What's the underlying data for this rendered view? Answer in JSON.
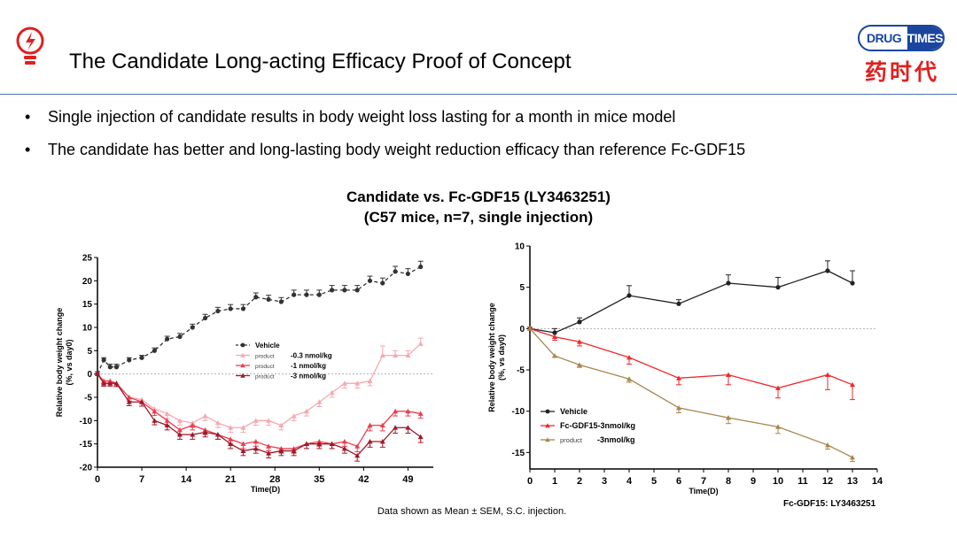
{
  "header": {
    "title": "The Candidate Long-acting Efficacy Proof of Concept",
    "logo_en_left": "DRUG",
    "logo_en_right": "TIMES",
    "logo_cn": "药时代",
    "colors": {
      "accent": "#e02020",
      "brand": "#1a46a0",
      "rule": "#4a6fb5"
    }
  },
  "bullets": [
    "Single injection of candidate results in body weight loss lasting for a month in mice model",
    "The candidate has better and long-lasting body weight reduction efficacy than reference Fc-GDF15"
  ],
  "bullet_symbol": "•",
  "chart_title_line1": "Candidate vs. Fc-GDF15 (LY3463251)",
  "chart_title_line2": "(C57 mice, n=7, single injection)",
  "footnote": "Data shown as Mean ± SEM, S.C. injection.",
  "ref_note": "Fc-GDF15: LY3463251",
  "chart_data": [
    {
      "type": "line",
      "xlabel": "Time(D)",
      "ylabel_line1": "Relative body weight change",
      "ylabel_line2": "(%, vs day0)",
      "xlim": [
        0,
        53
      ],
      "ylim": [
        -20,
        25
      ],
      "xticks": [
        0,
        7,
        14,
        21,
        28,
        35,
        42,
        49
      ],
      "yticks": [
        -20,
        -15,
        -10,
        -5,
        0,
        5,
        10,
        15,
        20,
        25
      ],
      "x": [
        0,
        1,
        2,
        3,
        5,
        7,
        9,
        11,
        13,
        15,
        17,
        19,
        21,
        23,
        25,
        27,
        29,
        31,
        33,
        35,
        37,
        39,
        41,
        43,
        45,
        47,
        49,
        51
      ],
      "series": [
        {
          "name": "Vehicle",
          "prefix": "",
          "color": "#333333",
          "marker": "circle",
          "dashed": true,
          "values": [
            0,
            3,
            1.5,
            1.5,
            3,
            3.5,
            5,
            7.5,
            8,
            10,
            12,
            13.5,
            14,
            14,
            16.5,
            16,
            15.5,
            17,
            17,
            17,
            18,
            18,
            18,
            20,
            19.5,
            22,
            21.5,
            23
          ],
          "err": [
            0.5,
            0.5,
            0.6,
            0.6,
            0.5,
            0.5,
            0.6,
            0.6,
            0.7,
            0.7,
            0.8,
            0.8,
            0.9,
            0.9,
            0.9,
            0.9,
            0.9,
            1,
            1,
            1,
            1,
            1,
            1,
            1,
            1.1,
            1.1,
            1.1,
            1.2
          ]
        },
        {
          "name": "-0.3 nmol/kg",
          "prefix": "product",
          "color": "#f7a8b0",
          "marker": "triangle",
          "dashed": false,
          "values": [
            0,
            -1.5,
            -1.5,
            -2,
            -5,
            -5.5,
            -7.5,
            -8.5,
            -10,
            -10.5,
            -9,
            -10.5,
            -11.5,
            -11.5,
            -10,
            -10,
            -11,
            -9,
            -8,
            -6,
            -4,
            -2,
            -2,
            -1.5,
            4,
            4,
            4,
            6.5
          ],
          "err": [
            0.5,
            0.6,
            0.6,
            0.7,
            0.8,
            0.9,
            0.9,
            1,
            1,
            1,
            1,
            1,
            1,
            1,
            1,
            1,
            1,
            1,
            1,
            1,
            1,
            1,
            1,
            1,
            2,
            1,
            1,
            1.2
          ]
        },
        {
          "name": "-1 nmol/kg",
          "prefix": "product",
          "color": "#e84050",
          "marker": "triangle",
          "dashed": false,
          "values": [
            0,
            -1.5,
            -1.5,
            -2,
            -5,
            -6,
            -8,
            -10,
            -12,
            -11,
            -12,
            -13,
            -14,
            -15,
            -14.5,
            -15.5,
            -16,
            -16,
            -15,
            -14.5,
            -15,
            -14.5,
            -15.5,
            -11,
            -11,
            -8,
            -8,
            -8.5
          ],
          "err": [
            0.5,
            0.6,
            0.6,
            0.7,
            0.8,
            0.9,
            0.9,
            1,
            1,
            1,
            1,
            1,
            1,
            1,
            1,
            1,
            1,
            1,
            1,
            1,
            1,
            1,
            1.2,
            1.2,
            1.2,
            1,
            1,
            1
          ]
        },
        {
          "name": "-3 nmol/kg",
          "prefix": "product",
          "color": "#a01828",
          "marker": "triangle",
          "dashed": false,
          "values": [
            0,
            -2,
            -2,
            -2,
            -6,
            -6,
            -10,
            -11,
            -13,
            -13,
            -12.5,
            -13,
            -15,
            -16.5,
            -16,
            -17,
            -16.5,
            -16.5,
            -15,
            -15,
            -15,
            -16,
            -17.5,
            -14.5,
            -14.5,
            -11.5,
            -11.5,
            -13.5
          ],
          "err": [
            0.5,
            0.6,
            0.6,
            0.7,
            0.8,
            0.9,
            0.9,
            1,
            1,
            1,
            1,
            1,
            1,
            1,
            1,
            1,
            1,
            1,
            1,
            1,
            1,
            1,
            1.2,
            1.2,
            1.2,
            1.2,
            1.2,
            1.2
          ]
        }
      ]
    },
    {
      "type": "line",
      "xlabel": "Time(D)",
      "ylabel_line1": "Relative body weight change",
      "ylabel_line2": "(%, vs day0)",
      "xlim": [
        0,
        14
      ],
      "ylim": [
        -17,
        10
      ],
      "xticks": [
        0,
        1,
        2,
        3,
        4,
        5,
        6,
        7,
        8,
        9,
        10,
        11,
        12,
        13,
        14
      ],
      "yticks": [
        -15,
        -10,
        -5,
        0,
        5,
        10
      ],
      "x": [
        0,
        1,
        2,
        4,
        6,
        8,
        10,
        12,
        13
      ],
      "series": [
        {
          "name": "Vehicle",
          "prefix": "",
          "color": "#222222",
          "marker": "circle",
          "dashed": false,
          "values": [
            0,
            -0.5,
            0.8,
            4,
            3,
            5.5,
            5,
            7,
            5.5
          ],
          "err": [
            0.2,
            0.5,
            0.5,
            1.2,
            0.5,
            1,
            1.2,
            1.2,
            1.5
          ]
        },
        {
          "name": "Fc-GDF15-3nmol/kg",
          "prefix": "",
          "color": "#f0282a",
          "marker": "triangle",
          "dashed": false,
          "values": [
            0,
            -1,
            -1.6,
            -3.5,
            -6,
            -5.6,
            -7.2,
            -5.6,
            -6.8
          ],
          "err": [
            0.2,
            0.4,
            0.5,
            0.8,
            0.8,
            1.2,
            1.2,
            1.8,
            1.8
          ]
        },
        {
          "name": "-3nmol/kg",
          "prefix": "product",
          "color": "#a8864e",
          "marker": "triangle",
          "dashed": false,
          "values": [
            0,
            -3.3,
            -4.4,
            -6.1,
            -9.6,
            -10.8,
            -11.9,
            -14.1,
            -15.6
          ],
          "err": [
            0.2,
            0.2,
            0.3,
            0.4,
            0.6,
            0.7,
            0.8,
            0.5,
            0.5
          ]
        }
      ]
    }
  ]
}
